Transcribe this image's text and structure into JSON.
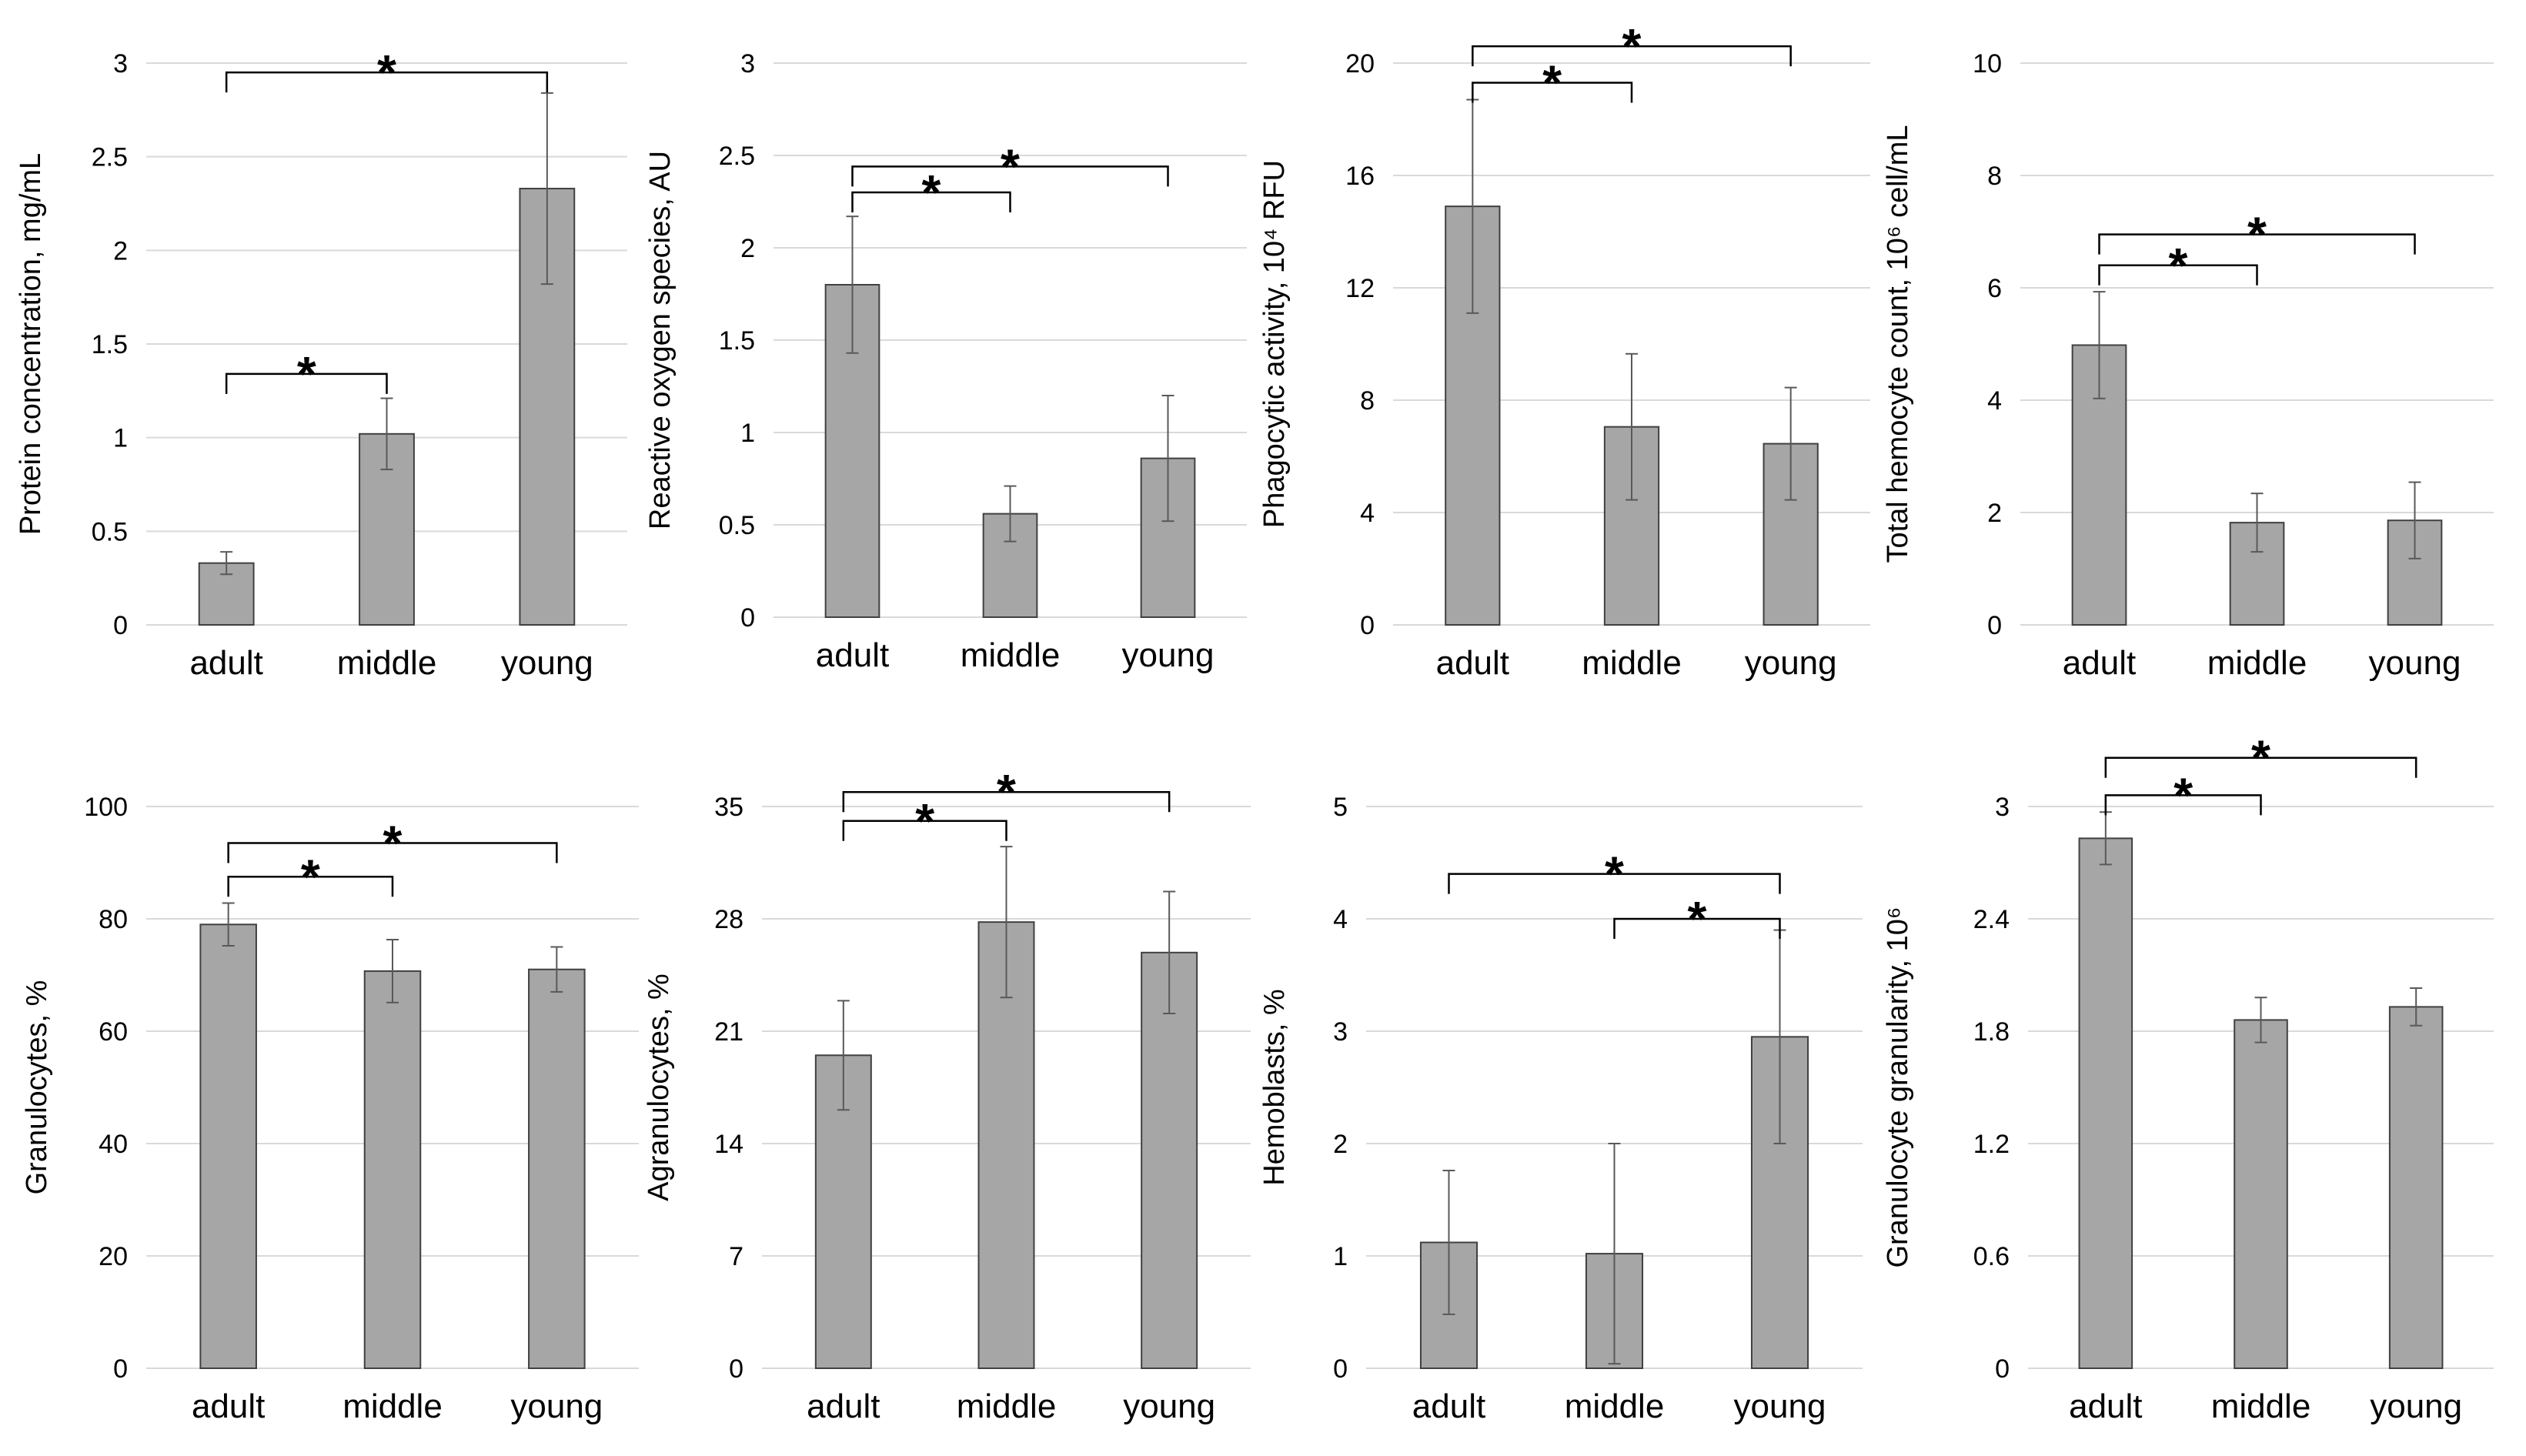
{
  "figure": {
    "bar_color": "#a6a6a6",
    "bar_stroke": "#404040",
    "grid_color": "#d9d9d9",
    "error_color": "#595959",
    "bracket_color": "#000000",
    "significance_mark": "*"
  },
  "chart_data": [
    {
      "type": "bar",
      "title": "",
      "ylabel": "Protein concentration, mg/mL",
      "categories": [
        "adult",
        "middle",
        "young"
      ],
      "values": [
        0.33,
        1.02,
        2.33
      ],
      "errors": [
        0.06,
        0.19,
        0.51
      ],
      "ylim": [
        0,
        3
      ],
      "yticks": [
        0,
        0.5,
        1,
        1.5,
        2,
        2.5,
        3
      ],
      "ytick_labels": [
        "0",
        "0.5",
        "1",
        "1.5",
        "2",
        "2.5",
        "3"
      ],
      "significance": [
        {
          "from": 0,
          "to": 1,
          "level": 1.34,
          "label": "*"
        },
        {
          "from": 0,
          "to": 2,
          "level": 2.95,
          "label": "*"
        }
      ]
    },
    {
      "type": "bar",
      "title": "",
      "ylabel": "Reactive oxygen species, AU",
      "categories": [
        "adult",
        "middle",
        "young"
      ],
      "values": [
        1.8,
        0.56,
        0.86
      ],
      "errors": [
        0.37,
        0.15,
        0.34
      ],
      "ylim": [
        0,
        3
      ],
      "yticks": [
        0,
        0.5,
        1,
        1.5,
        2,
        2.5,
        3
      ],
      "ytick_labels": [
        "0",
        "0.5",
        "1",
        "1.5",
        "2",
        "2.5",
        "3"
      ],
      "significance": [
        {
          "from": 0,
          "to": 1,
          "level": 2.3,
          "label": "*"
        },
        {
          "from": 0,
          "to": 2,
          "level": 2.44,
          "label": "*"
        }
      ]
    },
    {
      "type": "bar",
      "title": "",
      "ylabel": "Phagocytic activity, 10⁴ RFU",
      "categories": [
        "adult",
        "middle",
        "young"
      ],
      "values": [
        14.9,
        7.05,
        6.45
      ],
      "errors": [
        3.8,
        2.6,
        2.0
      ],
      "ylim": [
        0,
        20
      ],
      "yticks": [
        0,
        4,
        8,
        12,
        16,
        20
      ],
      "ytick_labels": [
        "0",
        "4",
        "8",
        "12",
        "16",
        "20"
      ],
      "significance": [
        {
          "from": 0,
          "to": 1,
          "level": 19.3,
          "label": "*"
        },
        {
          "from": 0,
          "to": 2,
          "level": 20.6,
          "label": "*"
        }
      ]
    },
    {
      "type": "bar",
      "title": "",
      "ylabel": "Total hemocyte count, 10⁶ cell/mL",
      "categories": [
        "adult",
        "middle",
        "young"
      ],
      "values": [
        4.98,
        1.82,
        1.86
      ],
      "errors": [
        0.95,
        0.52,
        0.68
      ],
      "ylim": [
        0,
        10
      ],
      "yticks": [
        0,
        2,
        4,
        6,
        8,
        10
      ],
      "ytick_labels": [
        "0",
        "2",
        "4",
        "6",
        "8",
        "10"
      ],
      "significance": [
        {
          "from": 0,
          "to": 1,
          "level": 6.4,
          "label": "*"
        },
        {
          "from": 0,
          "to": 2,
          "level": 6.95,
          "label": "*"
        }
      ]
    },
    {
      "type": "bar",
      "title": "",
      "ylabel": "Granulocytes, %",
      "categories": [
        "adult",
        "middle",
        "young"
      ],
      "values": [
        79,
        70.7,
        71
      ],
      "errors": [
        3.8,
        5.6,
        4.0
      ],
      "ylim": [
        0,
        100
      ],
      "yticks": [
        0,
        20,
        40,
        60,
        80,
        100
      ],
      "ytick_labels": [
        "0",
        "20",
        "40",
        "60",
        "80",
        "100"
      ],
      "significance": [
        {
          "from": 0,
          "to": 1,
          "level": 87.5,
          "label": "*"
        },
        {
          "from": 0,
          "to": 2,
          "level": 93.5,
          "label": "*"
        }
      ]
    },
    {
      "type": "bar",
      "title": "",
      "ylabel": "Agranulocytes, %",
      "categories": [
        "adult",
        "middle",
        "young"
      ],
      "values": [
        19.5,
        27.8,
        25.9
      ],
      "errors": [
        3.4,
        4.7,
        3.8
      ],
      "ylim": [
        0,
        35
      ],
      "yticks": [
        0,
        7,
        14,
        21,
        28,
        35
      ],
      "ytick_labels": [
        "0",
        "7",
        "14",
        "21",
        "28",
        "35"
      ],
      "significance": [
        {
          "from": 0,
          "to": 1,
          "level": 34.1,
          "label": "*"
        },
        {
          "from": 0,
          "to": 2,
          "level": 35.9,
          "label": "*"
        }
      ]
    },
    {
      "type": "bar",
      "title": "",
      "ylabel": "Hemoblasts, %",
      "categories": [
        "adult",
        "middle",
        "young"
      ],
      "values": [
        1.12,
        1.02,
        2.95
      ],
      "errors": [
        0.64,
        0.98,
        0.95
      ],
      "ylim": [
        0,
        5
      ],
      "yticks": [
        0,
        1,
        2,
        3,
        4,
        5
      ],
      "ytick_labels": [
        "0",
        "1",
        "2",
        "3",
        "4",
        "5"
      ],
      "significance": [
        {
          "from": 1,
          "to": 2,
          "level": 4.0,
          "label": "*"
        },
        {
          "from": 0,
          "to": 2,
          "level": 4.4,
          "label": "*"
        }
      ]
    },
    {
      "type": "bar",
      "title": "",
      "ylabel": "Granulocyte granularity, 10⁶",
      "categories": [
        "adult",
        "middle",
        "young"
      ],
      "values": [
        2.83,
        1.86,
        1.93
      ],
      "errors": [
        0.14,
        0.12,
        0.1
      ],
      "ylim": [
        0,
        3
      ],
      "yticks": [
        0,
        0.6,
        1.2,
        1.8,
        2.4,
        3
      ],
      "ytick_labels": [
        "0",
        "0.6",
        "1.2",
        "1.8",
        "2.4",
        "3"
      ],
      "significance": [
        {
          "from": 0,
          "to": 1,
          "level": 3.06,
          "label": "*"
        },
        {
          "from": 0,
          "to": 2,
          "level": 3.26,
          "label": "*"
        }
      ]
    }
  ]
}
